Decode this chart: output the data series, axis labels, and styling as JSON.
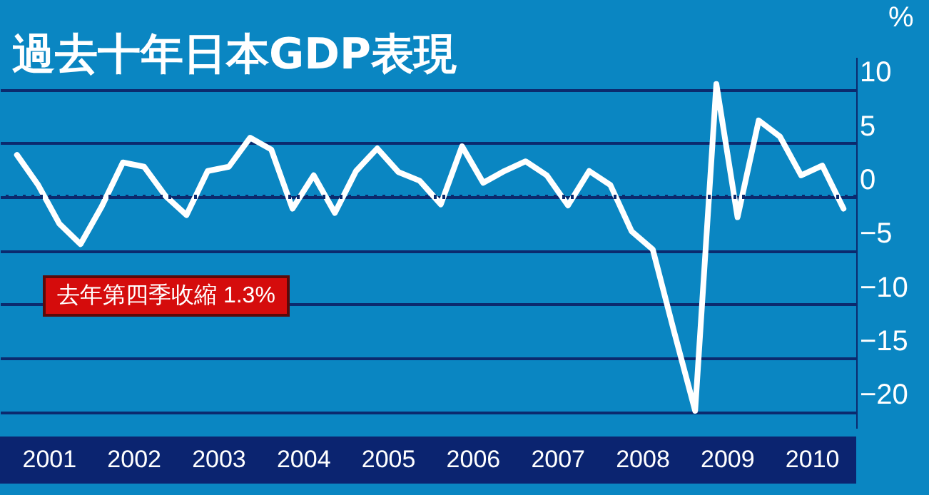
{
  "chart_data": {
    "type": "line",
    "title": "過去十年日本GDP表現",
    "ylabel": "%",
    "annotations": [
      "去年第四季收縮 1.3%"
    ],
    "x": [
      2001,
      2001.25,
      2001.5,
      2001.75,
      2002,
      2002.25,
      2002.5,
      2002.75,
      2003,
      2003.25,
      2003.5,
      2003.75,
      2004,
      2004.25,
      2004.5,
      2004.75,
      2005,
      2005.25,
      2005.5,
      2005.75,
      2006,
      2006.25,
      2006.5,
      2006.75,
      2007,
      2007.25,
      2007.5,
      2007.75,
      2008,
      2008.25,
      2008.5,
      2008.75,
      2009,
      2009.25,
      2009.5,
      2009.75,
      2010,
      2010.25,
      2010.5,
      2010.75
    ],
    "series": [
      {
        "color": "#ffffff",
        "values": [
          3.9,
          1.1,
          -2.5,
          -4.4,
          -0.9,
          3.2,
          2.8,
          0.1,
          -1.7,
          2.4,
          2.8,
          5.5,
          4.4,
          -1.1,
          2.0,
          -1.5,
          2.4,
          4.5,
          2.3,
          1.5,
          -0.7,
          4.7,
          1.3,
          2.4,
          3.3,
          2.0,
          -0.8,
          2.4,
          1.1,
          -3.2,
          -4.9,
          -12.5,
          -19.9,
          10.5,
          -1.9,
          7.1,
          5.6,
          2.0,
          2.9,
          -1.1
        ]
      }
    ],
    "xlim": [
      2000.8,
      2010.9
    ],
    "xticks": [
      {
        "value": 2001.375,
        "label": "2001"
      },
      {
        "value": 2002.375,
        "label": "2002"
      },
      {
        "value": 2003.375,
        "label": "2003"
      },
      {
        "value": 2004.375,
        "label": "2004"
      },
      {
        "value": 2005.375,
        "label": "2005"
      },
      {
        "value": 2006.375,
        "label": "2006"
      },
      {
        "value": 2007.375,
        "label": "2007"
      },
      {
        "value": 2008.375,
        "label": "2008"
      },
      {
        "value": 2009.375,
        "label": "2009"
      },
      {
        "value": 2010.375,
        "label": "2010"
      }
    ],
    "ylim": [
      -21.5,
      13
    ],
    "yticks": [
      -20,
      -15,
      -10,
      -5,
      0,
      5,
      10
    ],
    "grid": "y",
    "marker": "none",
    "line_style": "solid",
    "ref_lines": [
      {
        "axis": "y",
        "value": 0,
        "color": "#0b2a6e",
        "line_style": "dotted"
      }
    ]
  }
}
